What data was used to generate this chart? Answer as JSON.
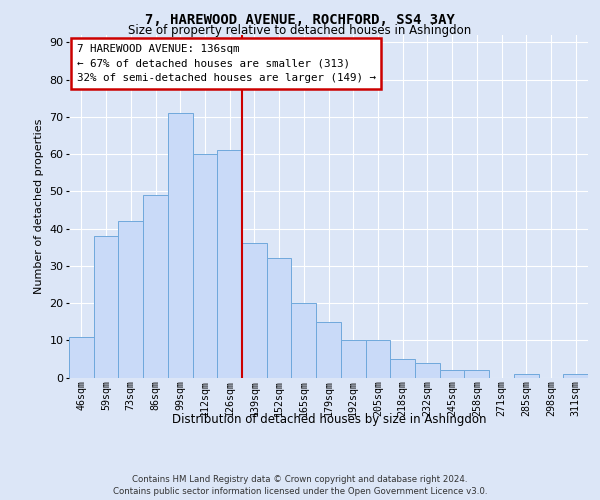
{
  "title": "7, HAREWOOD AVENUE, ROCHFORD, SS4 3AY",
  "subtitle": "Size of property relative to detached houses in Ashingdon",
  "xlabel": "Distribution of detached houses by size in Ashingdon",
  "ylabel": "Number of detached properties",
  "bar_labels": [
    "46sqm",
    "59sqm",
    "73sqm",
    "86sqm",
    "99sqm",
    "112sqm",
    "126sqm",
    "139sqm",
    "152sqm",
    "165sqm",
    "179sqm",
    "192sqm",
    "205sqm",
    "218sqm",
    "232sqm",
    "245sqm",
    "258sqm",
    "271sqm",
    "285sqm",
    "298sqm",
    "311sqm"
  ],
  "bar_values": [
    11,
    38,
    42,
    49,
    71,
    60,
    61,
    36,
    32,
    20,
    15,
    10,
    10,
    5,
    4,
    2,
    2,
    0,
    1,
    0,
    1
  ],
  "bar_color": "#c9daf8",
  "bar_edge_color": "#6fa8dc",
  "vline_x": 6.5,
  "vline_color": "#cc0000",
  "annotation_title": "7 HAREWOOD AVENUE: 136sqm",
  "annotation_line1": "← 67% of detached houses are smaller (313)",
  "annotation_line2": "32% of semi-detached houses are larger (149) →",
  "annotation_box_color": "#cc0000",
  "bg_color": "#dce6f7",
  "plot_bg_color": "#dce6f7",
  "yticks": [
    0,
    10,
    20,
    30,
    40,
    50,
    60,
    70,
    80,
    90
  ],
  "ylim": [
    0,
    92
  ],
  "footer": "Contains HM Land Registry data © Crown copyright and database right 2024.\nContains public sector information licensed under the Open Government Licence v3.0.",
  "grid_color": "#ffffff"
}
